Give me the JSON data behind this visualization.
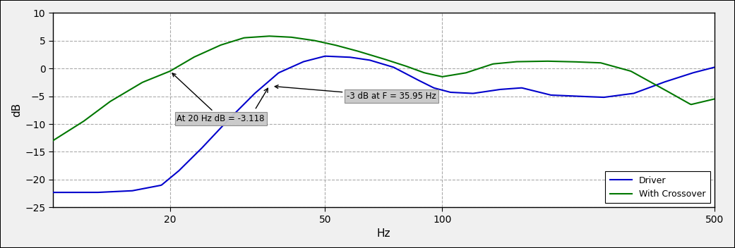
{
  "title": "",
  "xlabel": "Hz",
  "ylabel": "dB",
  "xlim_log": [
    10,
    500
  ],
  "ylim": [
    -25,
    10
  ],
  "yticks": [
    -25,
    -20,
    -15,
    -10,
    -5,
    0,
    5,
    10
  ],
  "xticks": [
    20,
    50,
    100,
    500
  ],
  "xtick_labels": [
    "20",
    "50",
    "100",
    "500"
  ],
  "grid_color": "#aaaaaa",
  "bg_color": "#ffffff",
  "driver_color": "#0000cc",
  "crossover_color": "#007700",
  "annotation1_text": "At 20 Hz dB = -3.118",
  "annotation2_text": "-3 dB at F = 35.95 Hz",
  "legend_entries": [
    "Driver",
    "With Crossover"
  ],
  "figsize": [
    10.41,
    3.52
  ],
  "dpi": 100,
  "driver_pts_f": [
    10,
    13,
    16,
    19,
    21,
    24,
    28,
    33,
    38,
    44,
    50,
    58,
    65,
    75,
    85,
    95,
    105,
    120,
    140,
    160,
    190,
    220,
    260,
    310,
    370,
    440,
    500
  ],
  "driver_pts_v": [
    -22.3,
    -22.3,
    -22.0,
    -21.0,
    -18.5,
    -14.5,
    -9.5,
    -4.5,
    -0.8,
    1.2,
    2.2,
    2.0,
    1.5,
    0.2,
    -1.8,
    -3.5,
    -4.3,
    -4.5,
    -3.8,
    -3.5,
    -4.8,
    -5.0,
    -5.2,
    -4.5,
    -2.5,
    -0.8,
    0.2
  ],
  "crossover_pts_f": [
    10,
    12,
    14,
    17,
    20,
    23,
    27,
    31,
    36,
    41,
    47,
    53,
    60,
    70,
    80,
    90,
    100,
    115,
    135,
    155,
    185,
    215,
    255,
    305,
    365,
    435,
    500
  ],
  "crossover_pts_v": [
    -13.0,
    -9.5,
    -6.0,
    -2.5,
    -0.5,
    2.0,
    4.2,
    5.5,
    5.8,
    5.6,
    5.0,
    4.2,
    3.2,
    1.8,
    0.5,
    -0.8,
    -1.5,
    -0.8,
    0.8,
    1.2,
    1.3,
    1.2,
    1.0,
    -0.5,
    -3.5,
    -6.5,
    -5.5
  ]
}
